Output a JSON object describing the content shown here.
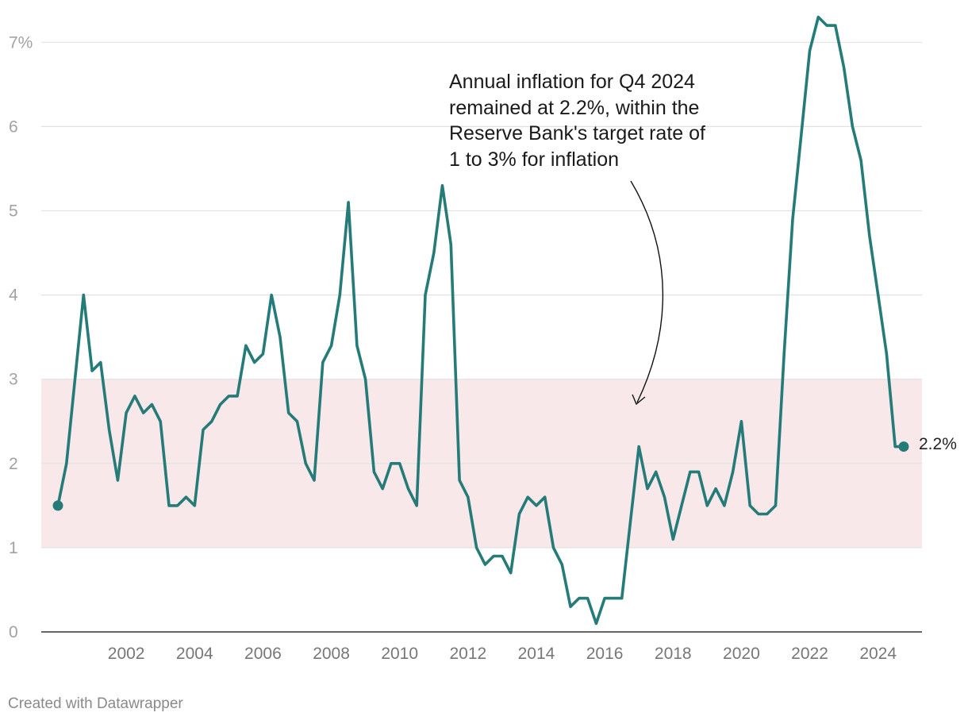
{
  "chart_data": {
    "type": "line",
    "title": "",
    "xlabel": "",
    "ylabel": "",
    "ylim": [
      0,
      7.4
    ],
    "y_ticks": [
      "0",
      "1",
      "2",
      "3",
      "4",
      "5",
      "6",
      "7%"
    ],
    "x_ticks": [
      "2002",
      "2004",
      "2006",
      "2008",
      "2010",
      "2012",
      "2014",
      "2016",
      "2018",
      "2020",
      "2022",
      "2024"
    ],
    "grid": true,
    "target_band": {
      "from": 1,
      "to": 3,
      "color": "#f8e8ea"
    },
    "line_color": "#247b78",
    "series": [
      {
        "x": [
          2000.0,
          2000.25,
          2000.5,
          2000.75,
          2001.0,
          2001.25,
          2001.5,
          2001.75,
          2002.0,
          2002.25,
          2002.5,
          2002.75,
          2003.0,
          2003.25,
          2003.5,
          2003.75,
          2004.0,
          2004.25,
          2004.5,
          2004.75,
          2005.0,
          2005.25,
          2005.5,
          2005.75,
          2006.0,
          2006.25,
          2006.5,
          2006.75,
          2007.0,
          2007.25,
          2007.5,
          2007.75,
          2008.0,
          2008.25,
          2008.5,
          2008.75,
          2009.0,
          2009.25,
          2009.5,
          2009.75,
          2010.0,
          2010.25,
          2010.5,
          2010.75,
          2011.0,
          2011.25,
          2011.5,
          2011.75,
          2012.0,
          2012.25,
          2012.5,
          2012.75,
          2013.0,
          2013.25,
          2013.5,
          2013.75,
          2014.0,
          2014.25,
          2014.5,
          2014.75,
          2015.0,
          2015.25,
          2015.5,
          2015.75,
          2016.0,
          2016.25,
          2016.5,
          2016.75,
          2017.0,
          2017.25,
          2017.5,
          2017.75,
          2018.0,
          2018.25,
          2018.5,
          2018.75,
          2019.0,
          2019.25,
          2019.5,
          2019.75,
          2020.0,
          2020.25,
          2020.5,
          2020.75,
          2021.0,
          2021.25,
          2021.5,
          2021.75,
          2022.0,
          2022.25,
          2022.5,
          2022.75,
          2023.0,
          2023.25,
          2023.5,
          2023.75,
          2024.0,
          2024.25,
          2024.5,
          2024.75
        ],
        "values": [
          1.5,
          2.0,
          3.0,
          4.0,
          3.1,
          3.2,
          2.4,
          1.8,
          2.6,
          2.8,
          2.6,
          2.7,
          2.5,
          1.5,
          1.5,
          1.6,
          1.5,
          2.4,
          2.5,
          2.7,
          2.8,
          2.8,
          3.4,
          3.2,
          3.3,
          4.0,
          3.5,
          2.6,
          2.5,
          2.0,
          1.8,
          3.2,
          3.4,
          4.0,
          5.1,
          3.4,
          3.0,
          1.9,
          1.7,
          2.0,
          2.0,
          1.7,
          1.5,
          4.0,
          4.5,
          5.3,
          4.6,
          1.8,
          1.6,
          1.0,
          0.8,
          0.9,
          0.9,
          0.7,
          1.4,
          1.6,
          1.5,
          1.6,
          1.0,
          0.8,
          0.3,
          0.4,
          0.4,
          0.1,
          0.4,
          0.4,
          0.4,
          1.3,
          2.2,
          1.7,
          1.9,
          1.6,
          1.1,
          1.5,
          1.9,
          1.9,
          1.5,
          1.7,
          1.5,
          1.9,
          2.5,
          1.5,
          1.4,
          1.4,
          1.5,
          3.3,
          4.9,
          5.9,
          6.9,
          7.3,
          7.2,
          7.2,
          6.7,
          6.0,
          5.6,
          4.7,
          4.0,
          3.3,
          2.2,
          2.2
        ]
      }
    ],
    "end_value_label": "2.2%",
    "annotation": {
      "lines": [
        "Annual inflation for Q4 2024",
        "remained at 2.2%, within the",
        "Reserve Bank's target rate of",
        "1 to 3% for inflation"
      ]
    }
  },
  "footer": "Created with Datawrapper"
}
